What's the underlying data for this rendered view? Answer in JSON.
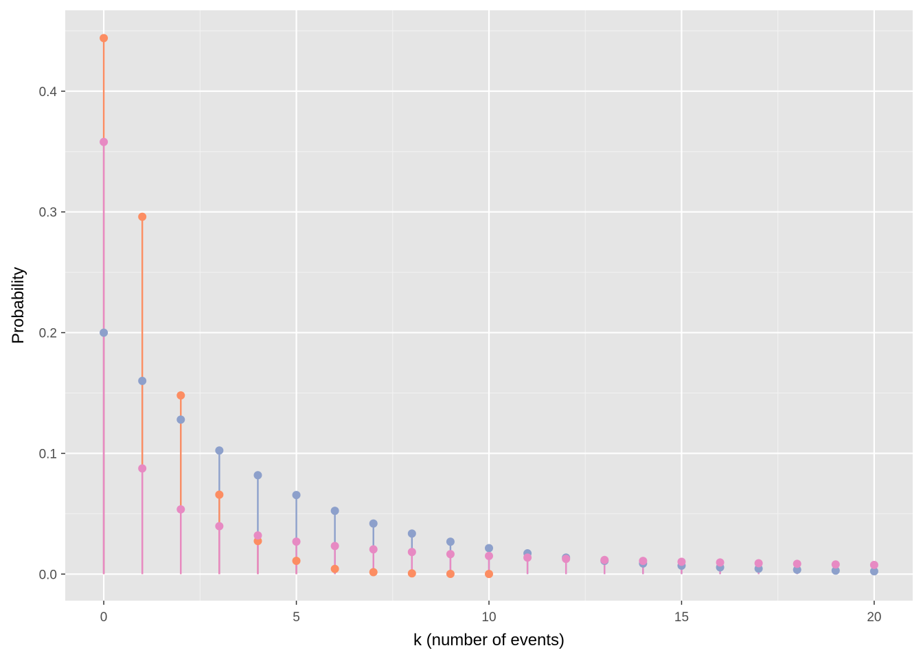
{
  "chart_data": {
    "type": "lollipop",
    "xlabel": "k (number of events)",
    "ylabel": "Probability",
    "xlim": [
      -1,
      21
    ],
    "ylim": [
      -0.022,
      0.467
    ],
    "x_ticks": [
      0,
      5,
      10,
      15,
      20
    ],
    "x_tick_labels": [
      "0",
      "5",
      "10",
      "15",
      "20"
    ],
    "y_ticks": [
      0.0,
      0.1,
      0.2,
      0.3,
      0.4
    ],
    "y_tick_labels": [
      "0.0",
      "0.1",
      "0.2",
      "0.3",
      "0.4"
    ],
    "x_minor": [
      -2.5,
      2.5,
      7.5,
      12.5,
      17.5
    ],
    "y_minor": [
      0.05,
      0.15,
      0.25,
      0.35,
      0.45
    ],
    "grid": true,
    "legend": "none",
    "background": "#e5e5e5",
    "series": [
      {
        "color": "#8da0cb",
        "x": [
          0,
          1,
          2,
          3,
          4,
          5,
          6,
          7,
          8,
          9,
          10,
          11,
          12,
          13,
          14,
          15,
          16,
          17,
          18,
          19,
          20
        ],
        "values": [
          0.2,
          0.16,
          0.128,
          0.1024,
          0.0819,
          0.0655,
          0.0524,
          0.0419,
          0.0336,
          0.0268,
          0.0215,
          0.0172,
          0.0137,
          0.011,
          0.0088,
          0.007,
          0.0056,
          0.0045,
          0.0036,
          0.0029,
          0.0023
        ]
      },
      {
        "color": "#fc8d62",
        "x": [
          0,
          1,
          2,
          3,
          4,
          5,
          6,
          7,
          8,
          9,
          10
        ],
        "values": [
          0.444,
          0.296,
          0.148,
          0.0658,
          0.0274,
          0.011,
          0.0043,
          0.0016,
          0.0006,
          0.0002,
          0.0001
        ]
      },
      {
        "color": "#e78ac3",
        "x": [
          0,
          1,
          2,
          3,
          4,
          5,
          6,
          7,
          8,
          9,
          10,
          11,
          12,
          13,
          14,
          15,
          16,
          17,
          18,
          19,
          20
        ],
        "values": [
          0.358,
          0.0875,
          0.0536,
          0.0397,
          0.032,
          0.0269,
          0.0233,
          0.0205,
          0.0183,
          0.0165,
          0.015,
          0.0137,
          0.0126,
          0.0117,
          0.0109,
          0.0102,
          0.0096,
          0.009,
          0.0085,
          0.008,
          0.0076
        ]
      }
    ]
  }
}
